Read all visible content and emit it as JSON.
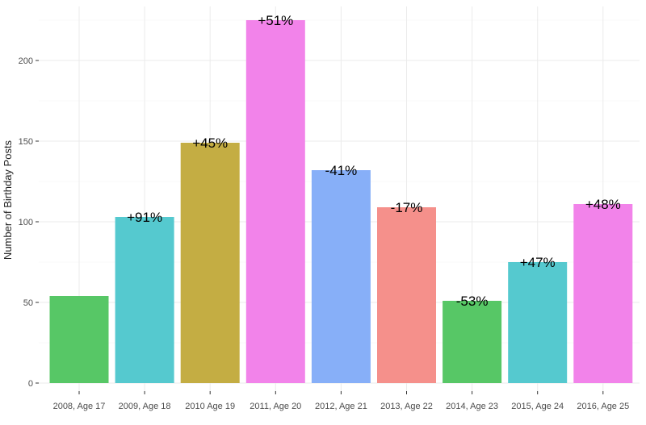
{
  "chart_data": {
    "type": "bar",
    "title": "",
    "xlabel": "",
    "ylabel": "Number of Birthday Posts",
    "ylim": [
      0,
      225
    ],
    "yticks": [
      0,
      50,
      100,
      150,
      200
    ],
    "grid": true,
    "legend": "none",
    "categories": [
      "2008, Age 17",
      "2009, Age 18",
      "2010 Age 19",
      "2011, Age 20",
      "2012, Age 21",
      "2013, Age 22",
      "2014, Age 23",
      "2015, Age 24",
      "2016, Age 25"
    ],
    "values": [
      54,
      103,
      149,
      225,
      132,
      109,
      51,
      75,
      111
    ],
    "data_labels": [
      "",
      "+91%",
      "+45%",
      "+51%",
      "-41%",
      "-17%",
      "-53%",
      "+47%",
      "+48%"
    ],
    "colors": [
      "#57c766",
      "#55c9cf",
      "#c4ad43",
      "#f283ea",
      "#87aff8",
      "#f5908b",
      "#57c766",
      "#55c9cf",
      "#f283ea"
    ]
  }
}
